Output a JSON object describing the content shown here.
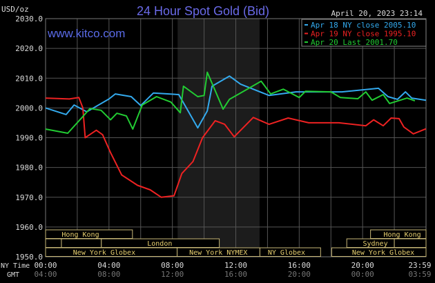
{
  "chart_data": {
    "type": "line",
    "title": "24 Hour Spot Gold (Bid)",
    "ylabel": "USD/oz",
    "timestamp": "April 20, 2023 23:14",
    "watermark": "www.kitco.com",
    "ylim": [
      1950,
      2030
    ],
    "xlim": [
      0,
      24
    ],
    "grid": true,
    "legend_placement": "top-right",
    "y_ticks": [
      {
        "value": 2030,
        "label": "2030.0"
      },
      {
        "value": 2020,
        "label": "2020.0"
      },
      {
        "value": 2010,
        "label": "2010.0"
      },
      {
        "value": 2000,
        "label": "2000.0"
      },
      {
        "value": 1990,
        "label": "1990.0"
      },
      {
        "value": 1980,
        "label": "1980.0"
      },
      {
        "value": 1970,
        "label": "1970.0"
      },
      {
        "value": 1960,
        "label": "1960.0"
      },
      {
        "value": 1950,
        "label": "1950.0"
      }
    ],
    "x_axis_labels": {
      "ny": "NY Time",
      "gmt": "GMT"
    },
    "x_ticks": [
      {
        "hour": 0,
        "ny": "00:00",
        "gmt": "04:00"
      },
      {
        "hour": 4,
        "ny": "04:00",
        "gmt": "08:00"
      },
      {
        "hour": 8,
        "ny": "08:00",
        "gmt": "12:00"
      },
      {
        "hour": 12,
        "ny": "12:00",
        "gmt": "16:00"
      },
      {
        "hour": 16,
        "ny": "16:00",
        "gmt": "20:00"
      },
      {
        "hour": 20,
        "ny": "20:00",
        "gmt": "00:00"
      },
      {
        "hour": 24,
        "ny": "23:59",
        "gmt": "03:59"
      }
    ],
    "shaded_region_hours": [
      8.33,
      13.5
    ],
    "series": [
      {
        "name": "Apr 18 NY close 2005.10",
        "color": "#33aaee",
        "points": [
          [
            0,
            2000
          ],
          [
            1.3,
            1997.8
          ],
          [
            1.8,
            2001
          ],
          [
            2.6,
            1998.7
          ],
          [
            4,
            2003
          ],
          [
            4.4,
            2004.7
          ],
          [
            5.4,
            2003.8
          ],
          [
            6,
            2000.8
          ],
          [
            6.8,
            2005
          ],
          [
            8.4,
            2004.5
          ],
          [
            9.6,
            1993.3
          ],
          [
            10.2,
            1999
          ],
          [
            10.5,
            2007.3
          ],
          [
            11.6,
            2010.7
          ],
          [
            12.3,
            2008
          ],
          [
            14.1,
            2004.2
          ],
          [
            15.8,
            2005.4
          ],
          [
            18.7,
            2005.4
          ],
          [
            21,
            2006.6
          ],
          [
            21.6,
            2003.8
          ],
          [
            22.2,
            2002.9
          ],
          [
            22.7,
            2005.4
          ],
          [
            23.1,
            2003.3
          ],
          [
            24,
            2002.6
          ]
        ]
      },
      {
        "name": "Apr 19 NY close 1995.10",
        "color": "#ee2222",
        "points": [
          [
            0,
            2003.3
          ],
          [
            1.5,
            2003
          ],
          [
            2.1,
            2003.5
          ],
          [
            2.35,
            2000
          ],
          [
            2.5,
            1990
          ],
          [
            3.2,
            1992.5
          ],
          [
            3.6,
            1991
          ],
          [
            4.1,
            1985
          ],
          [
            4.8,
            1977.5
          ],
          [
            5.8,
            1974
          ],
          [
            6.6,
            1972.5
          ],
          [
            7.3,
            1970
          ],
          [
            8.1,
            1970.5
          ],
          [
            8.6,
            1978
          ],
          [
            9.3,
            1982
          ],
          [
            9.9,
            1990
          ],
          [
            10.7,
            1995.7
          ],
          [
            11.3,
            1994.5
          ],
          [
            11.9,
            1990.3
          ],
          [
            13.1,
            1996.8
          ],
          [
            14.1,
            1994.5
          ],
          [
            15.3,
            1996.6
          ],
          [
            16.6,
            1995
          ],
          [
            18.5,
            1995
          ],
          [
            20.2,
            1994
          ],
          [
            20.7,
            1996
          ],
          [
            21.3,
            1994
          ],
          [
            21.8,
            1996.6
          ],
          [
            22.3,
            1996.4
          ],
          [
            22.6,
            1993.6
          ],
          [
            23.2,
            1991.3
          ],
          [
            24,
            1993
          ]
        ]
      },
      {
        "name": "Apr 20 Last 2001.70",
        "color": "#22cc33",
        "points": [
          [
            0,
            1992.9
          ],
          [
            1.4,
            1991.5
          ],
          [
            2.3,
            1996.8
          ],
          [
            2.8,
            1999.8
          ],
          [
            3.5,
            1999.2
          ],
          [
            4.1,
            1996
          ],
          [
            4.5,
            1998.2
          ],
          [
            5.1,
            1997.3
          ],
          [
            5.5,
            1992.9
          ],
          [
            6.1,
            2001
          ],
          [
            7,
            2003.8
          ],
          [
            7.9,
            2002
          ],
          [
            8.5,
            1998.4
          ],
          [
            8.7,
            2007.3
          ],
          [
            9.6,
            2003.8
          ],
          [
            10,
            2004.2
          ],
          [
            10.2,
            2012
          ],
          [
            11.2,
            1999.6
          ],
          [
            11.6,
            2002.9
          ],
          [
            12.3,
            2005
          ],
          [
            13.6,
            2009
          ],
          [
            14.2,
            2004.7
          ],
          [
            15,
            2006.3
          ],
          [
            16,
            2003.5
          ],
          [
            16.4,
            2005.6
          ],
          [
            18,
            2005.4
          ],
          [
            18.6,
            2003.5
          ],
          [
            19.7,
            2003.1
          ],
          [
            20.2,
            2005.4
          ],
          [
            20.6,
            2002.6
          ],
          [
            21.3,
            2004.5
          ],
          [
            21.7,
            2001.5
          ],
          [
            22.8,
            2003.3
          ],
          [
            23.3,
            2002.4
          ]
        ]
      }
    ],
    "sessions": [
      {
        "label": "Hong Kong",
        "row": 0,
        "start": 0,
        "end": 5.48,
        "label_hour": 2.2
      },
      {
        "label": "Hong Kong",
        "row": 0,
        "start": 20.5,
        "end": 24,
        "label_hour": 22.5
      },
      {
        "label": "",
        "row": 1,
        "start": 0,
        "end": 1,
        "label_hour": 0.5
      },
      {
        "label": "",
        "row": 1,
        "start": 1,
        "end": 3.52,
        "label_hour": 2
      },
      {
        "label": "London",
        "row": 1,
        "start": 3.52,
        "end": 10.96,
        "label_hour": 7.2
      },
      {
        "label": "Sydney",
        "row": 1,
        "start": 19,
        "end": 22,
        "label_hour": 20.8
      },
      {
        "label": "",
        "row": 1,
        "start": 22,
        "end": 24,
        "label_hour": 23
      },
      {
        "label": "New York Globex",
        "row": 2,
        "start": 0,
        "end": 8.3,
        "label_hour": 3.7
      },
      {
        "label": "New York NYMEX",
        "row": 2,
        "start": 8.3,
        "end": 13.52,
        "label_hour": 10.9
      },
      {
        "label": "NY Globex",
        "row": 2,
        "start": 13.52,
        "end": 17.35,
        "label_hour": 15.2
      },
      {
        "label": "New York Globex",
        "row": 2,
        "start": 18.05,
        "end": 24,
        "label_hour": 21.3
      }
    ]
  }
}
